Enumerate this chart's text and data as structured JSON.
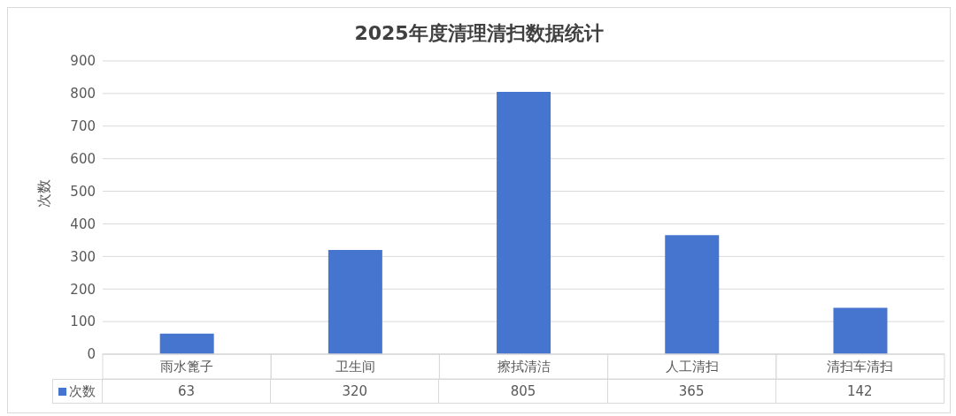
{
  "chart_data": {
    "type": "bar",
    "title": "2025年度清理清扫数据统计",
    "ylabel": "次数",
    "categories": [
      "雨水篦子",
      "卫生间",
      "擦拭清洁",
      "人工清扫",
      "清扫车清扫"
    ],
    "series": [
      {
        "name": "次数",
        "color": "#4675d0",
        "values": [
          63,
          320,
          805,
          365,
          142
        ]
      }
    ],
    "ylim": [
      0,
      900
    ],
    "yticks": [
      0,
      100,
      200,
      300,
      400,
      500,
      600,
      700,
      800,
      900
    ],
    "grid": "y",
    "legend": "bottom",
    "data_labels": true
  }
}
